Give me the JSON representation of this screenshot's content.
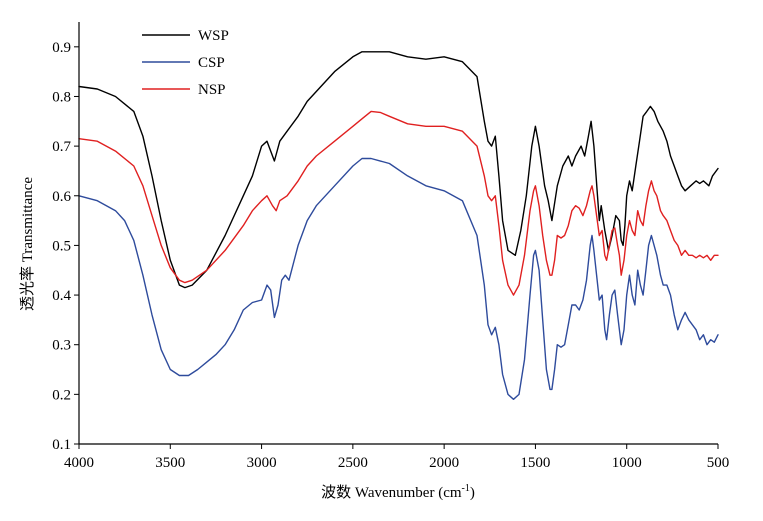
{
  "chart_data": {
    "type": "line",
    "xlabel": "波数 Wavenumber (cm",
    "xlabel_sup": "-1",
    "xlabel_tail": ")",
    "ylabel": "透光率 Transmittance",
    "xlim": [
      4000,
      500
    ],
    "x_reversed": true,
    "ylim": [
      0.1,
      0.95
    ],
    "x_ticks": [
      4000,
      3500,
      3000,
      2500,
      2000,
      1500,
      1000,
      500
    ],
    "x_tick_labels": [
      "4000",
      "3500",
      "3000",
      "2500",
      "2000",
      "1500",
      "1000",
      "500"
    ],
    "y_ticks": [
      0.1,
      0.2,
      0.3,
      0.4,
      0.5,
      0.6,
      0.7,
      0.8,
      0.9
    ],
    "y_tick_labels": [
      "0.1",
      "0.2",
      "0.3",
      "0.4",
      "0.5",
      "0.6",
      "0.7",
      "0.8",
      "0.9"
    ],
    "grid": false,
    "legend_position": "top-left",
    "series": [
      {
        "name": "WSP",
        "color": "#000000",
        "points": [
          [
            4000,
            0.82
          ],
          [
            3900,
            0.815
          ],
          [
            3800,
            0.8
          ],
          [
            3700,
            0.77
          ],
          [
            3650,
            0.72
          ],
          [
            3600,
            0.64
          ],
          [
            3550,
            0.55
          ],
          [
            3500,
            0.47
          ],
          [
            3450,
            0.42
          ],
          [
            3420,
            0.415
          ],
          [
            3380,
            0.42
          ],
          [
            3300,
            0.45
          ],
          [
            3200,
            0.52
          ],
          [
            3100,
            0.6
          ],
          [
            3050,
            0.64
          ],
          [
            3000,
            0.7
          ],
          [
            2970,
            0.71
          ],
          [
            2930,
            0.67
          ],
          [
            2900,
            0.71
          ],
          [
            2860,
            0.73
          ],
          [
            2800,
            0.76
          ],
          [
            2750,
            0.79
          ],
          [
            2700,
            0.81
          ],
          [
            2600,
            0.85
          ],
          [
            2500,
            0.88
          ],
          [
            2450,
            0.89
          ],
          [
            2400,
            0.89
          ],
          [
            2300,
            0.89
          ],
          [
            2200,
            0.88
          ],
          [
            2100,
            0.875
          ],
          [
            2000,
            0.88
          ],
          [
            1900,
            0.87
          ],
          [
            1820,
            0.84
          ],
          [
            1780,
            0.75
          ],
          [
            1760,
            0.71
          ],
          [
            1740,
            0.7
          ],
          [
            1720,
            0.72
          ],
          [
            1700,
            0.64
          ],
          [
            1680,
            0.55
          ],
          [
            1650,
            0.49
          ],
          [
            1610,
            0.48
          ],
          [
            1580,
            0.53
          ],
          [
            1550,
            0.6
          ],
          [
            1520,
            0.7
          ],
          [
            1500,
            0.74
          ],
          [
            1480,
            0.7
          ],
          [
            1450,
            0.62
          ],
          [
            1430,
            0.59
          ],
          [
            1410,
            0.55
          ],
          [
            1380,
            0.62
          ],
          [
            1350,
            0.66
          ],
          [
            1320,
            0.68
          ],
          [
            1300,
            0.66
          ],
          [
            1280,
            0.68
          ],
          [
            1250,
            0.7
          ],
          [
            1230,
            0.68
          ],
          [
            1210,
            0.72
          ],
          [
            1195,
            0.75
          ],
          [
            1180,
            0.7
          ],
          [
            1160,
            0.6
          ],
          [
            1150,
            0.55
          ],
          [
            1140,
            0.58
          ],
          [
            1120,
            0.53
          ],
          [
            1100,
            0.49
          ],
          [
            1080,
            0.52
          ],
          [
            1060,
            0.56
          ],
          [
            1040,
            0.55
          ],
          [
            1030,
            0.51
          ],
          [
            1020,
            0.5
          ],
          [
            1010,
            0.54
          ],
          [
            1000,
            0.6
          ],
          [
            985,
            0.63
          ],
          [
            970,
            0.61
          ],
          [
            950,
            0.66
          ],
          [
            930,
            0.71
          ],
          [
            910,
            0.76
          ],
          [
            890,
            0.77
          ],
          [
            870,
            0.78
          ],
          [
            850,
            0.77
          ],
          [
            830,
            0.75
          ],
          [
            800,
            0.73
          ],
          [
            780,
            0.71
          ],
          [
            760,
            0.68
          ],
          [
            740,
            0.66
          ],
          [
            720,
            0.64
          ],
          [
            700,
            0.62
          ],
          [
            680,
            0.61
          ],
          [
            650,
            0.62
          ],
          [
            620,
            0.63
          ],
          [
            600,
            0.625
          ],
          [
            580,
            0.63
          ],
          [
            550,
            0.62
          ],
          [
            530,
            0.64
          ],
          [
            500,
            0.655
          ]
        ]
      },
      {
        "name": "CSP",
        "color": "#2e4b9c",
        "points": [
          [
            4000,
            0.6
          ],
          [
            3900,
            0.59
          ],
          [
            3800,
            0.57
          ],
          [
            3750,
            0.55
          ],
          [
            3700,
            0.51
          ],
          [
            3650,
            0.44
          ],
          [
            3600,
            0.36
          ],
          [
            3550,
            0.29
          ],
          [
            3500,
            0.25
          ],
          [
            3450,
            0.238
          ],
          [
            3400,
            0.238
          ],
          [
            3350,
            0.25
          ],
          [
            3300,
            0.265
          ],
          [
            3250,
            0.28
          ],
          [
            3200,
            0.3
          ],
          [
            3150,
            0.33
          ],
          [
            3100,
            0.37
          ],
          [
            3050,
            0.385
          ],
          [
            3000,
            0.39
          ],
          [
            2970,
            0.42
          ],
          [
            2950,
            0.41
          ],
          [
            2930,
            0.355
          ],
          [
            2910,
            0.38
          ],
          [
            2890,
            0.43
          ],
          [
            2870,
            0.44
          ],
          [
            2850,
            0.43
          ],
          [
            2800,
            0.5
          ],
          [
            2750,
            0.55
          ],
          [
            2700,
            0.58
          ],
          [
            2600,
            0.62
          ],
          [
            2500,
            0.66
          ],
          [
            2450,
            0.675
          ],
          [
            2400,
            0.675
          ],
          [
            2300,
            0.665
          ],
          [
            2200,
            0.64
          ],
          [
            2100,
            0.62
          ],
          [
            2000,
            0.61
          ],
          [
            1900,
            0.59
          ],
          [
            1820,
            0.52
          ],
          [
            1780,
            0.42
          ],
          [
            1760,
            0.34
          ],
          [
            1740,
            0.32
          ],
          [
            1720,
            0.335
          ],
          [
            1700,
            0.3
          ],
          [
            1680,
            0.24
          ],
          [
            1650,
            0.2
          ],
          [
            1620,
            0.19
          ],
          [
            1590,
            0.2
          ],
          [
            1560,
            0.27
          ],
          [
            1530,
            0.4
          ],
          [
            1510,
            0.48
          ],
          [
            1500,
            0.49
          ],
          [
            1480,
            0.45
          ],
          [
            1460,
            0.35
          ],
          [
            1440,
            0.25
          ],
          [
            1420,
            0.21
          ],
          [
            1410,
            0.21
          ],
          [
            1395,
            0.25
          ],
          [
            1380,
            0.3
          ],
          [
            1360,
            0.295
          ],
          [
            1340,
            0.3
          ],
          [
            1320,
            0.34
          ],
          [
            1300,
            0.38
          ],
          [
            1280,
            0.38
          ],
          [
            1260,
            0.37
          ],
          [
            1240,
            0.39
          ],
          [
            1220,
            0.43
          ],
          [
            1200,
            0.5
          ],
          [
            1190,
            0.52
          ],
          [
            1180,
            0.49
          ],
          [
            1165,
            0.44
          ],
          [
            1150,
            0.39
          ],
          [
            1135,
            0.4
          ],
          [
            1120,
            0.33
          ],
          [
            1110,
            0.31
          ],
          [
            1095,
            0.36
          ],
          [
            1080,
            0.4
          ],
          [
            1065,
            0.41
          ],
          [
            1050,
            0.36
          ],
          [
            1040,
            0.33
          ],
          [
            1030,
            0.3
          ],
          [
            1015,
            0.33
          ],
          [
            1000,
            0.4
          ],
          [
            985,
            0.44
          ],
          [
            970,
            0.4
          ],
          [
            955,
            0.38
          ],
          [
            940,
            0.45
          ],
          [
            925,
            0.42
          ],
          [
            910,
            0.4
          ],
          [
            895,
            0.45
          ],
          [
            880,
            0.5
          ],
          [
            865,
            0.52
          ],
          [
            850,
            0.5
          ],
          [
            835,
            0.48
          ],
          [
            815,
            0.44
          ],
          [
            800,
            0.42
          ],
          [
            780,
            0.42
          ],
          [
            760,
            0.4
          ],
          [
            740,
            0.36
          ],
          [
            720,
            0.33
          ],
          [
            700,
            0.35
          ],
          [
            680,
            0.365
          ],
          [
            660,
            0.35
          ],
          [
            640,
            0.34
          ],
          [
            620,
            0.33
          ],
          [
            600,
            0.31
          ],
          [
            580,
            0.32
          ],
          [
            560,
            0.3
          ],
          [
            540,
            0.31
          ],
          [
            520,
            0.305
          ],
          [
            500,
            0.32
          ]
        ]
      },
      {
        "name": "NSP",
        "color": "#e02020",
        "points": [
          [
            4000,
            0.715
          ],
          [
            3900,
            0.71
          ],
          [
            3800,
            0.69
          ],
          [
            3700,
            0.66
          ],
          [
            3650,
            0.62
          ],
          [
            3600,
            0.56
          ],
          [
            3550,
            0.5
          ],
          [
            3500,
            0.455
          ],
          [
            3450,
            0.43
          ],
          [
            3420,
            0.425
          ],
          [
            3380,
            0.43
          ],
          [
            3300,
            0.45
          ],
          [
            3200,
            0.49
          ],
          [
            3100,
            0.54
          ],
          [
            3050,
            0.57
          ],
          [
            3000,
            0.59
          ],
          [
            2970,
            0.6
          ],
          [
            2940,
            0.58
          ],
          [
            2920,
            0.57
          ],
          [
            2900,
            0.59
          ],
          [
            2860,
            0.6
          ],
          [
            2800,
            0.63
          ],
          [
            2750,
            0.66
          ],
          [
            2700,
            0.68
          ],
          [
            2600,
            0.71
          ],
          [
            2500,
            0.74
          ],
          [
            2450,
            0.755
          ],
          [
            2400,
            0.77
          ],
          [
            2350,
            0.768
          ],
          [
            2300,
            0.76
          ],
          [
            2200,
            0.745
          ],
          [
            2100,
            0.74
          ],
          [
            2000,
            0.74
          ],
          [
            1900,
            0.73
          ],
          [
            1820,
            0.7
          ],
          [
            1780,
            0.64
          ],
          [
            1760,
            0.6
          ],
          [
            1740,
            0.59
          ],
          [
            1720,
            0.6
          ],
          [
            1700,
            0.54
          ],
          [
            1680,
            0.47
          ],
          [
            1650,
            0.42
          ],
          [
            1620,
            0.4
          ],
          [
            1590,
            0.42
          ],
          [
            1560,
            0.48
          ],
          [
            1530,
            0.57
          ],
          [
            1510,
            0.61
          ],
          [
            1500,
            0.62
          ],
          [
            1480,
            0.58
          ],
          [
            1460,
            0.52
          ],
          [
            1440,
            0.47
          ],
          [
            1420,
            0.44
          ],
          [
            1410,
            0.44
          ],
          [
            1395,
            0.47
          ],
          [
            1380,
            0.52
          ],
          [
            1360,
            0.515
          ],
          [
            1340,
            0.52
          ],
          [
            1320,
            0.54
          ],
          [
            1300,
            0.57
          ],
          [
            1280,
            0.58
          ],
          [
            1260,
            0.575
          ],
          [
            1240,
            0.56
          ],
          [
            1220,
            0.58
          ],
          [
            1200,
            0.61
          ],
          [
            1190,
            0.62
          ],
          [
            1180,
            0.6
          ],
          [
            1165,
            0.56
          ],
          [
            1150,
            0.52
          ],
          [
            1135,
            0.53
          ],
          [
            1120,
            0.48
          ],
          [
            1110,
            0.47
          ],
          [
            1095,
            0.5
          ],
          [
            1080,
            0.53
          ],
          [
            1065,
            0.535
          ],
          [
            1050,
            0.5
          ],
          [
            1040,
            0.48
          ],
          [
            1030,
            0.44
          ],
          [
            1015,
            0.47
          ],
          [
            1000,
            0.52
          ],
          [
            985,
            0.55
          ],
          [
            970,
            0.53
          ],
          [
            955,
            0.52
          ],
          [
            940,
            0.57
          ],
          [
            925,
            0.55
          ],
          [
            910,
            0.54
          ],
          [
            895,
            0.58
          ],
          [
            880,
            0.61
          ],
          [
            865,
            0.63
          ],
          [
            850,
            0.61
          ],
          [
            835,
            0.6
          ],
          [
            815,
            0.57
          ],
          [
            800,
            0.56
          ],
          [
            780,
            0.55
          ],
          [
            760,
            0.53
          ],
          [
            740,
            0.51
          ],
          [
            720,
            0.5
          ],
          [
            700,
            0.48
          ],
          [
            680,
            0.49
          ],
          [
            660,
            0.48
          ],
          [
            640,
            0.48
          ],
          [
            620,
            0.475
          ],
          [
            600,
            0.48
          ],
          [
            580,
            0.475
          ],
          [
            560,
            0.48
          ],
          [
            540,
            0.47
          ],
          [
            520,
            0.48
          ],
          [
            500,
            0.48
          ]
        ]
      }
    ]
  }
}
